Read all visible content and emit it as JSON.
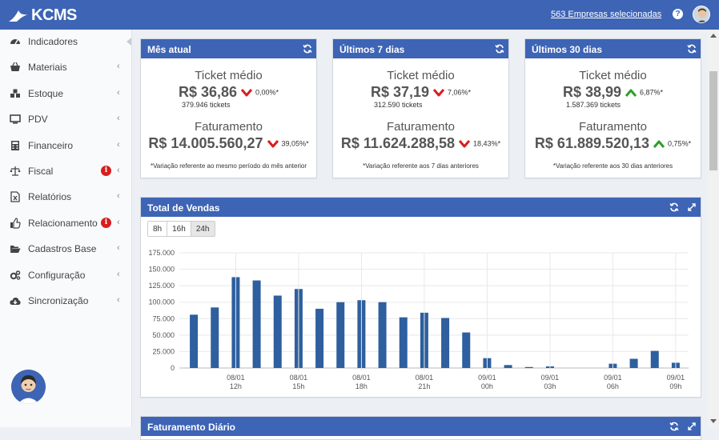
{
  "app": {
    "logo_text": "KCMS",
    "companies_link": "563 Empresas selecionadas",
    "help_label": "?"
  },
  "sidebar": {
    "items": [
      {
        "label": "Indicadores",
        "icon": "dashboard-icon",
        "chevron": false,
        "alert": false
      },
      {
        "label": "Materiais",
        "icon": "basket-icon",
        "chevron": true,
        "alert": false
      },
      {
        "label": "Estoque",
        "icon": "cubes-icon",
        "chevron": true,
        "alert": false
      },
      {
        "label": "PDV",
        "icon": "monitor-icon",
        "chevron": true,
        "alert": false
      },
      {
        "label": "Financeiro",
        "icon": "calculator-icon",
        "chevron": true,
        "alert": false
      },
      {
        "label": "Fiscal",
        "icon": "balance-scale-icon",
        "chevron": true,
        "alert": true
      },
      {
        "label": "Relatórios",
        "icon": "excel-file-icon",
        "chevron": true,
        "alert": false
      },
      {
        "label": "Relacionamento",
        "icon": "thumbs-up-icon",
        "chevron": true,
        "alert": true
      },
      {
        "label": "Cadastros Base",
        "icon": "folder-open-icon",
        "chevron": true,
        "alert": false
      },
      {
        "label": "Configuração",
        "icon": "gears-icon",
        "chevron": true,
        "alert": false
      },
      {
        "label": "Sincronização",
        "icon": "cloud-download-icon",
        "chevron": true,
        "alert": false
      }
    ],
    "chevron_glyph": "‹",
    "alert_glyph": "i"
  },
  "cards": [
    {
      "title": "Mês atual",
      "ticket_label": "Ticket médio",
      "ticket_value": "R$ 36,86",
      "ticket_trend": "down",
      "ticket_pct": "0,00%*",
      "tickets_count": "379.946 tickets",
      "fat_label": "Faturamento",
      "fat_value": "R$ 14.005.560,27",
      "fat_trend": "down",
      "fat_pct": "39,05%*",
      "note": "*Variação referente ao mesmo período do mês anterior"
    },
    {
      "title": "Últimos 7 dias",
      "ticket_label": "Ticket médio",
      "ticket_value": "R$ 37,19",
      "ticket_trend": "down",
      "ticket_pct": "7,06%*",
      "tickets_count": "312.590 tickets",
      "fat_label": "Faturamento",
      "fat_value": "R$ 11.624.288,58",
      "fat_trend": "down",
      "fat_pct": "18,43%*",
      "note": "*Variação referente aos 7 dias anteriores"
    },
    {
      "title": "Últimos 30 dias",
      "ticket_label": "Ticket médio",
      "ticket_value": "R$ 38,99",
      "ticket_trend": "up",
      "ticket_pct": "6,87%*",
      "tickets_count": "1.587.369 tickets",
      "fat_label": "Faturamento",
      "fat_value": "R$ 61.889.520,13",
      "fat_trend": "up",
      "fat_pct": "0,75%*",
      "note": "*Variação referente aos 30 dias anteriores"
    }
  ],
  "colors": {
    "header": "#3d64b5",
    "bar": "#2e5f9e",
    "down": "#d81e1e",
    "up": "#2ba02b"
  },
  "sales_panel": {
    "title": "Total de Vendas",
    "ranges": [
      "8h",
      "16h",
      "24h"
    ],
    "selected_range": "24h"
  },
  "chart_data": {
    "type": "bar",
    "ylim": [
      0,
      175000
    ],
    "yticks": [
      0,
      25000,
      50000,
      75000,
      100000,
      125000,
      150000,
      175000
    ],
    "ytick_labels": [
      "0",
      "25.000",
      "50.000",
      "75.000",
      "100.000",
      "125.000",
      "150.000",
      "175.000"
    ],
    "xtick_labels": [
      [
        "08/01",
        "12h"
      ],
      [
        "08/01",
        "15h"
      ],
      [
        "08/01",
        "18h"
      ],
      [
        "08/01",
        "21h"
      ],
      [
        "09/01",
        "00h"
      ],
      [
        "09/01",
        "03h"
      ],
      [
        "09/01",
        "06h"
      ],
      [
        "09/01",
        "09h"
      ]
    ],
    "values": [
      81000,
      92000,
      138000,
      133000,
      110000,
      120000,
      90000,
      100000,
      103000,
      100000,
      77000,
      84000,
      76000,
      54000,
      15000,
      4500,
      1500,
      2500,
      0,
      0,
      6500,
      14000,
      26000,
      8000
    ],
    "grid": true
  },
  "bottom_panel": {
    "title": "Faturamento Diário"
  }
}
